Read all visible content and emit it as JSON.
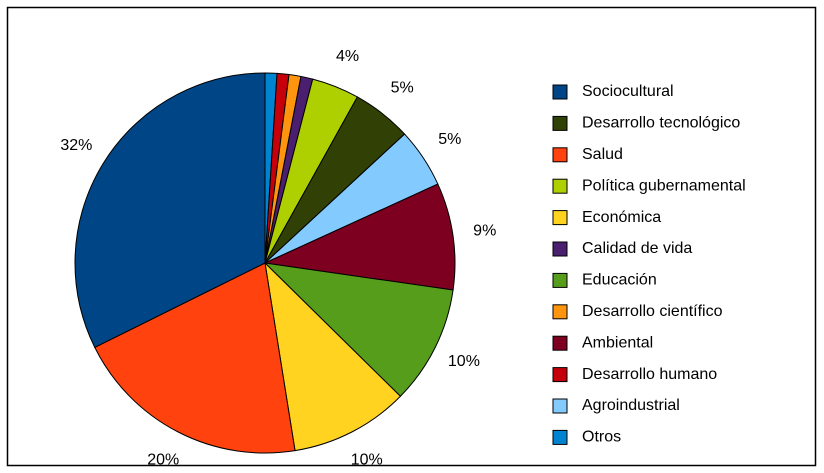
{
  "chart_data": {
    "type": "pie",
    "categories": [
      "Otros",
      "Desarrollo humano",
      "Desarrollo científico",
      "Calidad de vida",
      "Política gubernamental",
      "Desarrollo tecnológico",
      "Agroindustrial",
      "Ambiental",
      "Educación",
      "Económica",
      "Salud",
      "Sociocultural"
    ],
    "values": [
      1,
      1,
      1,
      1,
      4,
      5,
      5,
      9,
      10,
      10,
      20,
      32
    ],
    "value_labels": [
      null,
      null,
      null,
      null,
      "4%",
      "5%",
      "5%",
      "9%",
      "10%",
      "10%",
      "20%",
      "32%"
    ],
    "colors": [
      "#0084d1",
      "#c5000b",
      "#ff950e",
      "#4b1f6f",
      "#aecf00",
      "#314004",
      "#83caff",
      "#7e0021",
      "#579d1c",
      "#ffd320",
      "#ff420e",
      "#004586"
    ],
    "legend": "right"
  }
}
